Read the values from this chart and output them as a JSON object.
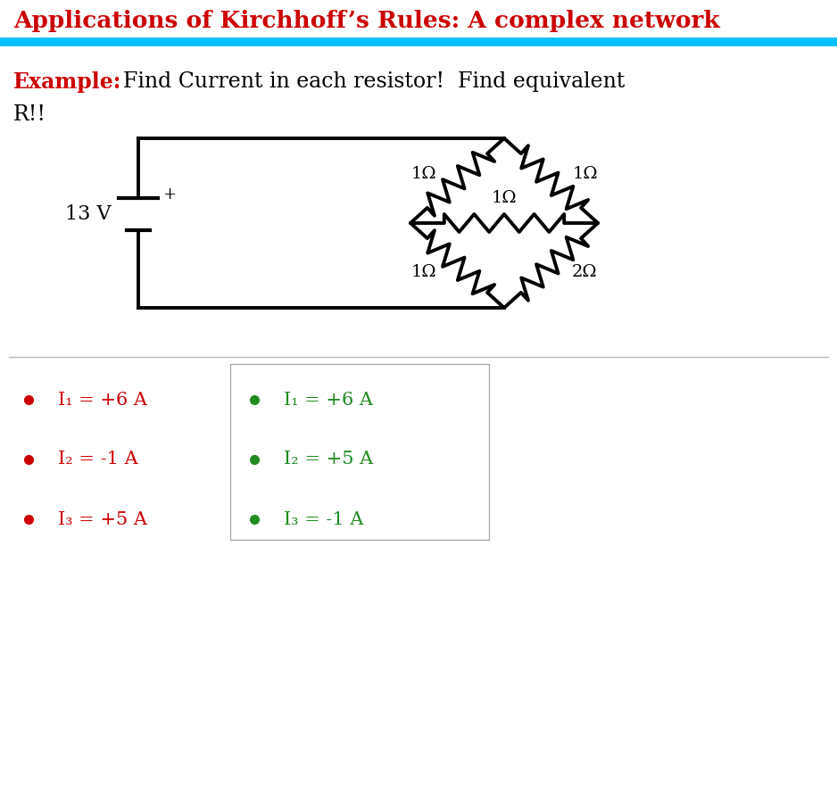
{
  "title": "Applications of Kirchhoff’s Rules: A complex network",
  "title_color": "#cc0000",
  "example_label": "Example:",
  "example_text1": "Find Current in each resistor!  Find equivalent",
  "example_text2": "R!!",
  "example_color": "#cc0000",
  "voltage_label": "13 V",
  "resistor_labels": [
    "1Ω",
    "1Ω",
    "1Ω",
    "1Ω",
    "2Ω"
  ],
  "left_column": [
    {
      "bullet_color": "#cc0000",
      "text": "I₁ = +6 A",
      "text_color": "#cc0000"
    },
    {
      "bullet_color": "#cc0000",
      "text": "I₂ = -1 A",
      "text_color": "#cc0000"
    },
    {
      "bullet_color": "#cc0000",
      "text": "I₃ = +5 A",
      "text_color": "#cc0000"
    }
  ],
  "right_column": [
    {
      "bullet_color": "#228B22",
      "text": "I₁ = +6 A",
      "text_color": "#228B22"
    },
    {
      "bullet_color": "#228B22",
      "text": "I₂ = +5 A",
      "text_color": "#228B22"
    },
    {
      "bullet_color": "#228B22",
      "text": "I₃ = -1 A",
      "text_color": "#228B22"
    }
  ],
  "bg_color": "#ffffff",
  "line_color": "#000000",
  "separator_color": "#00bfff"
}
